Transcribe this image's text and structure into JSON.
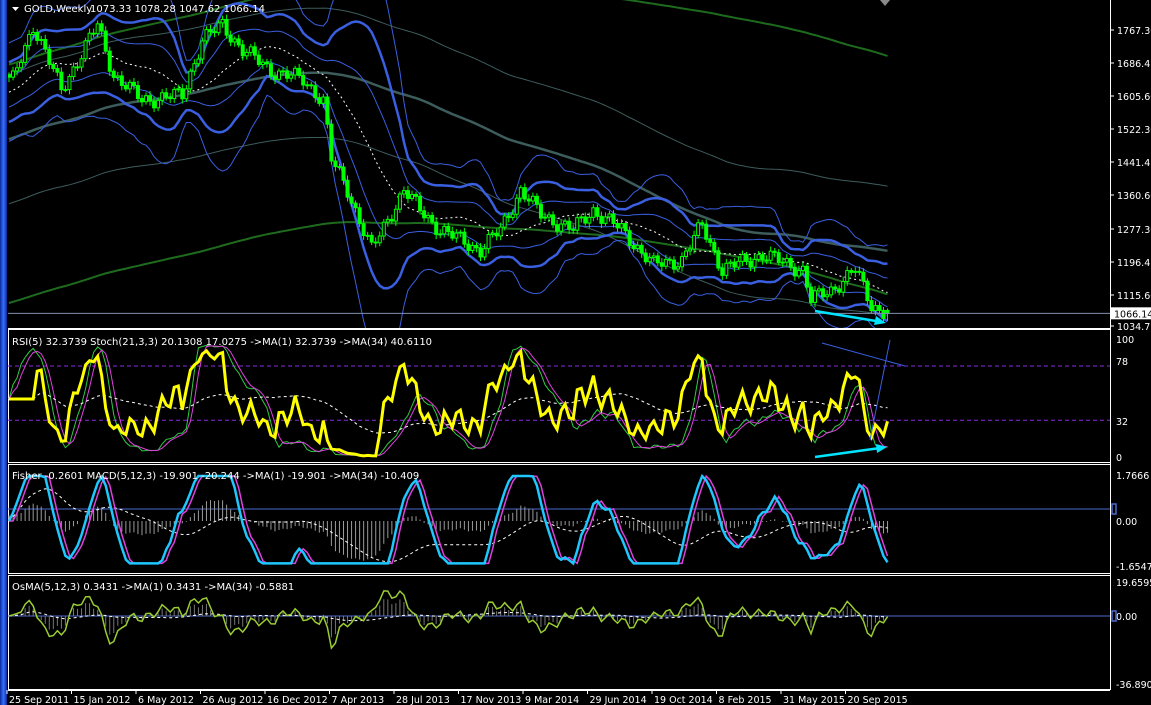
{
  "chart_data": {
    "type": "candlestick",
    "symbol_header": "GOLD,Weekly",
    "last_ohlc": {
      "open": 1073.33,
      "high": 1078.28,
      "low": 1047.62,
      "close": 1066.14
    },
    "ohlc_text": "1073.33 1078.28 1047.62 1066.14",
    "current_price_label": "1066.14",
    "y_ticks": [
      "1767.30",
      "1686.45",
      "1605.60",
      "1522.30",
      "1441.45",
      "1360.60",
      "1277.30",
      "1196.45",
      "1115.60",
      "1034.75"
    ],
    "ylim": [
      1034.75,
      1767.3
    ],
    "x_ticks": [
      "25 Sep 2011",
      "15 Jan 2012",
      "6 May 2012",
      "26 Aug 2012",
      "16 Dec 2012",
      "7 Apr 2013",
      "28 Jul 2013",
      "17 Nov 2013",
      "9 Mar 2014",
      "29 Jun 2014",
      "19 Oct 2014",
      "8 Feb 2015",
      "31 May 2015",
      "20 Sep 2015"
    ],
    "grid": false,
    "approx_weekly_closes": [
      [
        "2011-10-02",
        1643
      ],
      [
        "2011-11-06",
        1780
      ],
      [
        "2011-12-25",
        1619
      ],
      [
        "2012-02-26",
        1780
      ],
      [
        "2012-03-25",
        1656
      ],
      [
        "2012-05-13",
        1594
      ],
      [
        "2012-07-22",
        1606
      ],
      [
        "2012-08-26",
        1743
      ],
      [
        "2012-09-30",
        1780
      ],
      [
        "2012-11-04",
        1718
      ],
      [
        "2012-12-23",
        1668
      ],
      [
        "2013-02-17",
        1644
      ],
      [
        "2013-03-24",
        1594
      ],
      [
        "2013-04-07",
        1446
      ],
      [
        "2013-05-05",
        1372
      ],
      [
        "2013-06-16",
        1223
      ],
      [
        "2013-08-11",
        1372
      ],
      [
        "2013-09-08",
        1322
      ],
      [
        "2013-10-13",
        1273
      ],
      [
        "2013-12-22",
        1223
      ],
      [
        "2014-01-26",
        1273
      ],
      [
        "2014-03-02",
        1372
      ],
      [
        "2014-04-06",
        1310
      ],
      [
        "2014-06-01",
        1273
      ],
      [
        "2014-07-06",
        1322
      ],
      [
        "2014-08-24",
        1273
      ],
      [
        "2014-10-19",
        1186
      ],
      [
        "2014-12-07",
        1199
      ],
      [
        "2015-01-11",
        1285
      ],
      [
        "2015-02-15",
        1174
      ],
      [
        "2015-04-26",
        1211
      ],
      [
        "2015-07-05",
        1174
      ],
      [
        "2015-07-19",
        1099
      ],
      [
        "2015-08-23",
        1124
      ],
      [
        "2015-10-04",
        1174
      ],
      [
        "2015-11-01",
        1087
      ],
      [
        "2015-11-29",
        1066.14
      ]
    ],
    "colors": {
      "candle": "#00ff00",
      "bands": "#3a5fe0",
      "ma_dashed": "#ffffff",
      "long_ma": "#3d5c5c",
      "envelope": "#1e6b1e",
      "arrow": "#00e5ff",
      "rsi": "#ffff00",
      "stoch_main": "#2ecc40",
      "stoch_signal": "#e040e0",
      "levels": "#8a2be2",
      "fisher": "#1ec8ff",
      "osma": "#9acd32"
    }
  },
  "panels": {
    "rsi": {
      "header": "RSI(5) 32.3739  Stoch(21,3,3) 20.1308 17.0275  ->MA(1) 32.3739  ->MA(34) 40.6110",
      "ticks": [
        "100",
        "78",
        "32",
        "0"
      ],
      "levels": [
        78,
        32
      ]
    },
    "macd": {
      "header": "Fisher -0.2601  MACD(5,12,3) -19.901 -20.244  ->MA(1) -19.901  ->MA(34) -10.409",
      "ticks": [
        "1.7666",
        "0.00",
        "-1.6547"
      ]
    },
    "osma": {
      "header": "OsMA(5,12,3) 0.3431  ->MA(1) 0.3431  ->MA(34) -0.5881",
      "ticks": [
        "19.6595",
        "0.00",
        "-36.8908"
      ]
    }
  }
}
